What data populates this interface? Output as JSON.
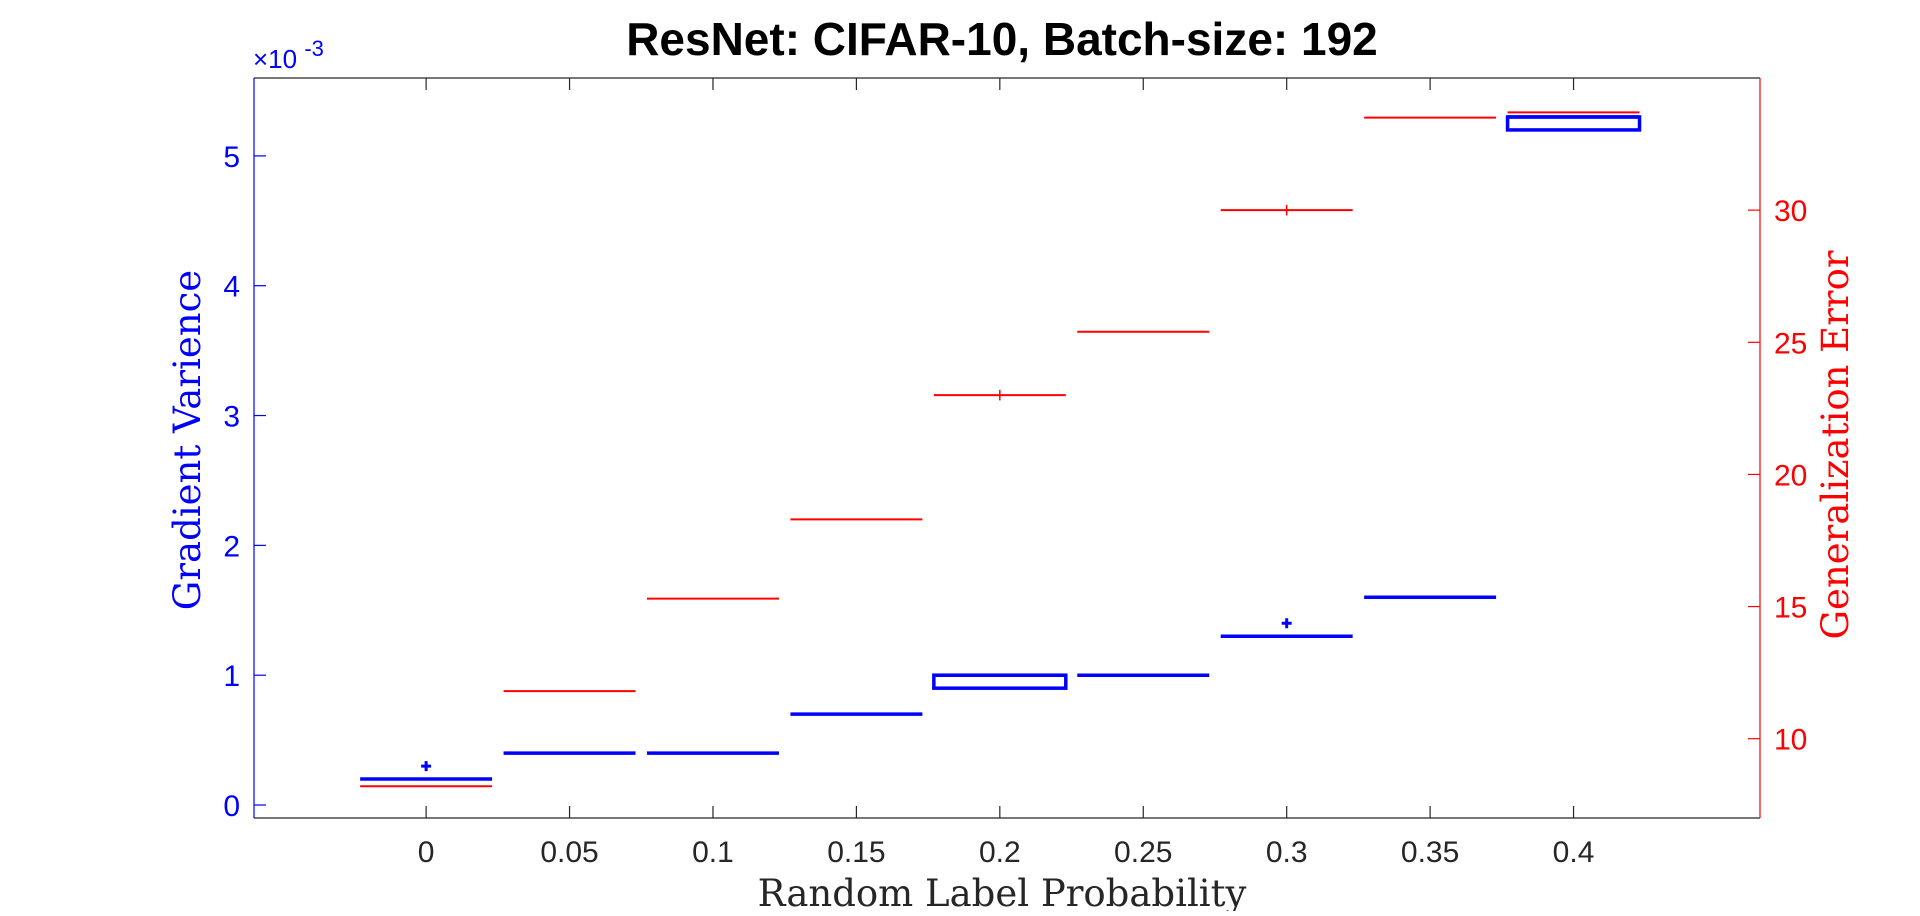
{
  "chart_data": {
    "type": "box",
    "title": "ResNet: CIFAR-10, Batch-size: 192",
    "xlabel": "Random Label Probability",
    "ylabel_left": "Gradient Varience",
    "ylabel_right": "Generalization Error",
    "left_exponent": "×10",
    "left_exponent_power": "-3",
    "categories": [
      "0",
      "0.05",
      "0.1",
      "0.15",
      "0.2",
      "0.25",
      "0.3",
      "0.35",
      "0.4"
    ],
    "x": [
      0,
      0.05,
      0.1,
      0.15,
      0.2,
      0.25,
      0.3,
      0.35,
      0.4
    ],
    "xlim": [
      -0.06,
      0.465
    ],
    "left_axis": {
      "ylim": [
        -0.0001,
        0.0056
      ],
      "ticks": [
        0,
        0.001,
        0.002,
        0.003,
        0.004,
        0.005
      ],
      "tick_labels": [
        "0",
        "1",
        "2",
        "3",
        "4",
        "5"
      ],
      "color": "#0000ff"
    },
    "right_axis": {
      "ylim": [
        7,
        35
      ],
      "ticks": [
        10,
        15,
        20,
        25,
        30
      ],
      "tick_labels": [
        "10",
        "15",
        "20",
        "25",
        "30"
      ],
      "color": "#ff0000"
    },
    "series": [
      {
        "axis": "left",
        "color": "#0000ff",
        "boxes": [
          {
            "x": 0,
            "q1": 0.0002,
            "q3": 0.0002,
            "median": 0.0002,
            "outliers": [
              0.0003
            ]
          },
          {
            "x": 0.05,
            "q1": 0.0004,
            "q3": 0.0004,
            "median": 0.0004,
            "outliers": []
          },
          {
            "x": 0.1,
            "q1": 0.0004,
            "q3": 0.0004,
            "median": 0.0004,
            "outliers": []
          },
          {
            "x": 0.15,
            "q1": 0.0007,
            "q3": 0.0007,
            "median": 0.0007,
            "outliers": []
          },
          {
            "x": 0.2,
            "q1": 0.0009,
            "q3": 0.001,
            "median": 0.001,
            "outliers": []
          },
          {
            "x": 0.25,
            "q1": 0.001,
            "q3": 0.001,
            "median": 0.001,
            "outliers": []
          },
          {
            "x": 0.3,
            "q1": 0.0013,
            "q3": 0.0013,
            "median": 0.0013,
            "outliers": [
              0.0014
            ]
          },
          {
            "x": 0.35,
            "q1": 0.0016,
            "q3": 0.0016,
            "median": 0.0016,
            "outliers": []
          },
          {
            "x": 0.4,
            "q1": 0.0052,
            "q3": 0.0053,
            "median": 0.0053,
            "outliers": []
          }
        ]
      },
      {
        "axis": "right",
        "color": "#ff0000",
        "boxes": [
          {
            "x": 0,
            "q1": 8.2,
            "q3": 8.2,
            "median": 8.2,
            "outliers": []
          },
          {
            "x": 0.05,
            "q1": 11.8,
            "q3": 11.8,
            "median": 11.8,
            "outliers": []
          },
          {
            "x": 0.1,
            "q1": 15.3,
            "q3": 15.3,
            "median": 15.3,
            "outliers": []
          },
          {
            "x": 0.15,
            "q1": 18.3,
            "q3": 18.3,
            "median": 18.3,
            "outliers": []
          },
          {
            "x": 0.2,
            "q1": 23.0,
            "q3": 23.0,
            "median": 23.0,
            "outliers": [],
            "whisker_low": 22.8,
            "whisker_high": 23.2
          },
          {
            "x": 0.25,
            "q1": 25.4,
            "q3": 25.4,
            "median": 25.4,
            "outliers": []
          },
          {
            "x": 0.3,
            "q1": 30.0,
            "q3": 30.0,
            "median": 30.0,
            "outliers": [],
            "whisker_low": 29.8,
            "whisker_high": 30.2
          },
          {
            "x": 0.35,
            "q1": 33.5,
            "q3": 33.5,
            "median": 33.5,
            "outliers": []
          },
          {
            "x": 0.4,
            "q1": 33.7,
            "q3": 33.7,
            "median": 33.7,
            "outliers": []
          }
        ]
      }
    ],
    "grid": false,
    "legend": "none"
  }
}
